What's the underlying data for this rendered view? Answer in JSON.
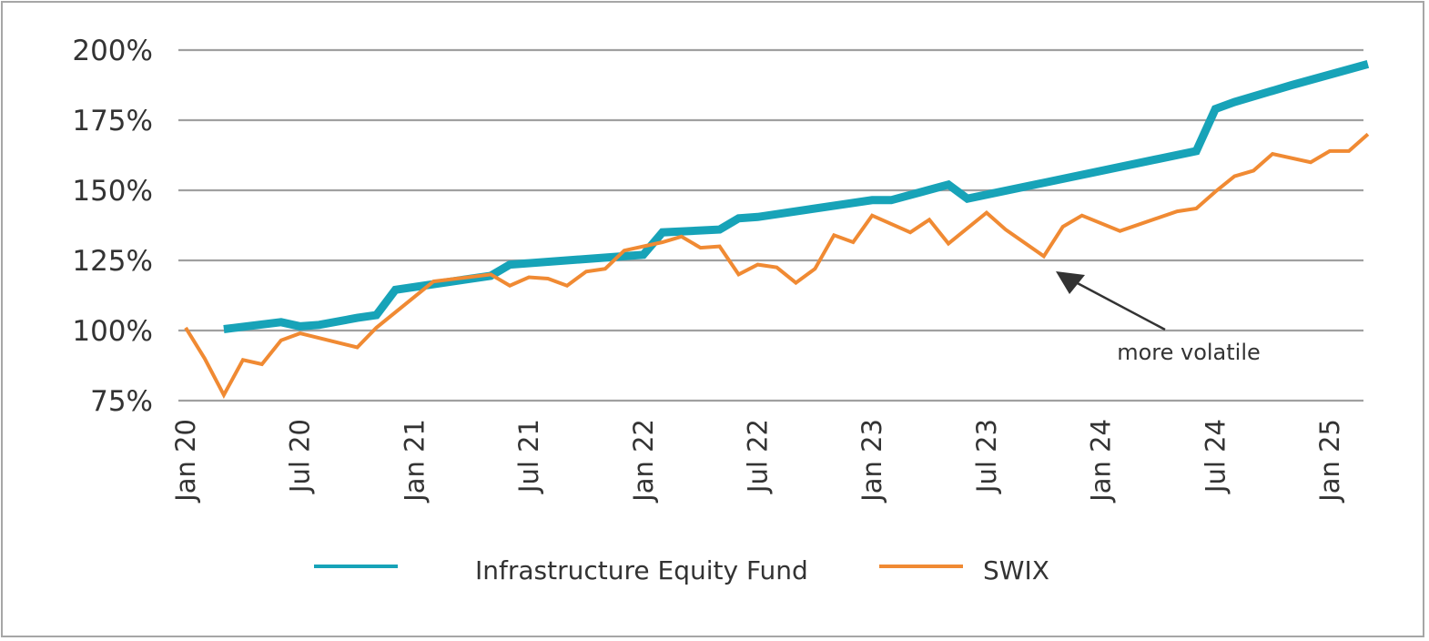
{
  "chart_data": {
    "type": "line",
    "title": "",
    "xlabel": "",
    "ylabel": "",
    "ylim": [
      75,
      200
    ],
    "yticks": [
      75,
      100,
      125,
      150,
      175,
      200
    ],
    "ytick_labels": [
      "75%",
      "100%",
      "125%",
      "150%",
      "175%",
      "200%"
    ],
    "xlim_months": [
      0,
      62
    ],
    "xticks": [
      {
        "label": "Jan 20",
        "month": 0
      },
      {
        "label": "Jul 20",
        "month": 6
      },
      {
        "label": "Jan 21",
        "month": 12
      },
      {
        "label": "Jul 21",
        "month": 18
      },
      {
        "label": "Jan 22",
        "month": 24
      },
      {
        "label": "Jul 22",
        "month": 30
      },
      {
        "label": "Jan 23",
        "month": 36
      },
      {
        "label": "Jul 23",
        "month": 42
      },
      {
        "label": "Jan 24",
        "month": 48
      },
      {
        "label": "Jul 24",
        "month": 54
      },
      {
        "label": "Jan 25",
        "month": 60
      }
    ],
    "grid": true,
    "legend_position": "bottom",
    "series": [
      {
        "name": "Infrastructure Equity Fund",
        "color": "#17a3b8",
        "points": [
          [
            2,
            100.5
          ],
          [
            5,
            103
          ],
          [
            6,
            101.5
          ],
          [
            7,
            102
          ],
          [
            9,
            104.5
          ],
          [
            10,
            105.5
          ],
          [
            11,
            114.5
          ],
          [
            16,
            119.5
          ],
          [
            17,
            123.5
          ],
          [
            23,
            126.5
          ],
          [
            24,
            127
          ],
          [
            25,
            135
          ],
          [
            28,
            136
          ],
          [
            29,
            140
          ],
          [
            30,
            140.5
          ],
          [
            36,
            146.5
          ],
          [
            37,
            146.5
          ],
          [
            40,
            152
          ],
          [
            41,
            147
          ],
          [
            53,
            164
          ],
          [
            54,
            179
          ],
          [
            55,
            181.5
          ],
          [
            58,
            187.5
          ],
          [
            62,
            195
          ]
        ]
      },
      {
        "name": "SWIX",
        "color": "#f08a33",
        "points": [
          [
            0,
            101
          ],
          [
            1,
            90
          ],
          [
            2,
            77
          ],
          [
            3,
            89.5
          ],
          [
            4,
            88
          ],
          [
            5,
            96.5
          ],
          [
            6,
            99
          ],
          [
            9,
            94
          ],
          [
            10,
            101
          ],
          [
            13,
            117.5
          ],
          [
            16,
            120
          ],
          [
            17,
            116
          ],
          [
            18,
            119
          ],
          [
            19,
            118.5
          ],
          [
            20,
            116
          ],
          [
            21,
            121
          ],
          [
            22,
            122
          ],
          [
            23,
            128.5
          ],
          [
            25,
            131.5
          ],
          [
            26,
            133.5
          ],
          [
            27,
            129.5
          ],
          [
            28,
            130
          ],
          [
            29,
            120
          ],
          [
            30,
            123.5
          ],
          [
            31,
            122.5
          ],
          [
            32,
            117
          ],
          [
            33,
            122
          ],
          [
            34,
            134
          ],
          [
            35,
            131.5
          ],
          [
            36,
            141
          ],
          [
            38,
            135
          ],
          [
            39,
            139.5
          ],
          [
            40,
            131
          ],
          [
            42,
            142
          ],
          [
            43,
            136
          ],
          [
            45,
            126.5
          ],
          [
            46,
            137
          ],
          [
            47,
            141
          ],
          [
            49,
            135.5
          ],
          [
            52,
            142.5
          ],
          [
            53,
            143.5
          ],
          [
            54,
            149.5
          ],
          [
            55,
            155
          ],
          [
            56,
            157
          ],
          [
            57,
            163
          ],
          [
            59,
            160
          ],
          [
            60,
            164
          ],
          [
            61,
            164
          ],
          [
            62,
            170
          ]
        ]
      }
    ],
    "annotations": [
      {
        "text": "more volatile",
        "arrow_from": [
          48.5,
          101
        ],
        "arrow_to": [
          45.5,
          123
        ]
      }
    ]
  }
}
